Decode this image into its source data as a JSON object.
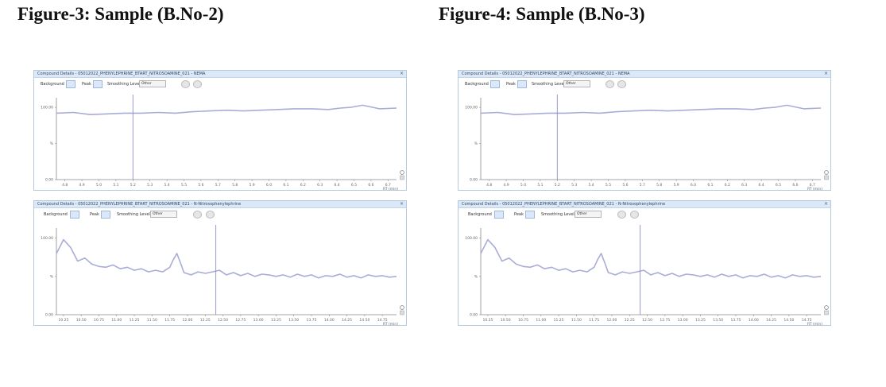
{
  "figures": [
    {
      "title": "Figure-3: Sample (B.No-2)",
      "top_panel": {
        "window_title": "Compound Details - 05012022_PHENYLEPHRINE_BTART_NITROSOAMINE_021 - NEMA",
        "close": "×",
        "toolbar": {
          "background": "Background",
          "peak": "Peak",
          "smoothing": "Smoothing Level",
          "smoothing_value": "Other"
        }
      },
      "bottom_panel": {
        "window_title": "Compound Details - 05012022_PHENYLEPHRINE_BTART_NITROSOAMINE_021 - N-Nitrosophenylephrine",
        "close": "×",
        "toolbar": {
          "background": "Background",
          "peak": "Peak",
          "smoothing": "Smoothing Level",
          "smoothing_value": "Other"
        }
      }
    },
    {
      "title": "Figure-4: Sample (B.No-3)",
      "top_panel": {
        "window_title": "Compound Details - 05012022_PHENYLEPHRINE_BTART_NITROSOAMINE_021 - NEMA",
        "close": "×",
        "toolbar": {
          "background": "Background",
          "peak": "Peak",
          "smoothing": "Smoothing Level",
          "smoothing_value": "Other"
        }
      },
      "bottom_panel": {
        "window_title": "Compound Details - 05012022_PHENYLEPHRINE_BTART_NITROSOAMINE_021 - N-Nitrosophenylephrine",
        "close": "×",
        "toolbar": {
          "background": "Background",
          "peak": "Peak",
          "smoothing": "Smoothing Level",
          "smoothing_value": "Other"
        }
      }
    }
  ],
  "colors": {
    "trace": "#a9acd8",
    "marker": "#8a90c8",
    "axis": "#888888"
  },
  "chart_data": [
    {
      "type": "line",
      "panel": "top",
      "xlabel": "RT (min)",
      "ylabel": "",
      "ylim": [
        0,
        100
      ],
      "yticks": [
        "100.00",
        "%",
        "0.00"
      ],
      "xticks": [
        "4.8",
        "4.9",
        "5.0",
        "5.1",
        "5.2",
        "5.3",
        "5.4",
        "5.5",
        "5.6",
        "5.7",
        "5.8",
        "5.9",
        "6.0",
        "6.1",
        "6.2",
        "6.3",
        "6.4",
        "6.5",
        "6.6",
        "6.7"
      ],
      "xlim": [
        4.75,
        6.75
      ],
      "marker_x": 5.2,
      "x": [
        4.75,
        4.85,
        4.95,
        5.05,
        5.15,
        5.25,
        5.35,
        5.45,
        5.55,
        5.65,
        5.75,
        5.85,
        5.95,
        6.05,
        6.15,
        6.25,
        6.35,
        6.42,
        6.48,
        6.55,
        6.65,
        6.75
      ],
      "y": [
        92,
        93,
        90,
        91,
        92,
        92,
        93,
        92,
        94,
        95,
        96,
        95,
        96,
        97,
        98,
        98,
        97,
        99,
        100,
        103,
        98,
        99
      ]
    },
    {
      "type": "line",
      "panel": "bottom",
      "xlabel": "RT (min)",
      "ylabel": "",
      "ylim": [
        0,
        100
      ],
      "yticks": [
        "100.00",
        "%",
        "0.00"
      ],
      "xticks": [
        "10.25",
        "10.50",
        "10.75",
        "11.00",
        "11.25",
        "11.50",
        "11.75",
        "12.00",
        "12.25",
        "12.50",
        "12.75",
        "13.00",
        "13.25",
        "13.50",
        "13.75",
        "14.00",
        "14.25",
        "14.50",
        "14.75"
      ],
      "xlim": [
        10.15,
        14.95
      ],
      "marker_x": 12.4,
      "x": [
        10.15,
        10.25,
        10.35,
        10.45,
        10.55,
        10.65,
        10.75,
        10.85,
        10.95,
        11.05,
        11.15,
        11.25,
        11.35,
        11.45,
        11.55,
        11.65,
        11.75,
        11.8,
        11.85,
        11.9,
        11.95,
        12.05,
        12.15,
        12.25,
        12.35,
        12.45,
        12.55,
        12.65,
        12.75,
        12.85,
        12.95,
        13.05,
        13.15,
        13.25,
        13.35,
        13.45,
        13.55,
        13.65,
        13.75,
        13.85,
        13.95,
        14.05,
        14.15,
        14.25,
        14.35,
        14.45,
        14.55,
        14.65,
        14.75,
        14.85,
        14.95
      ],
      "y": [
        80,
        98,
        88,
        70,
        74,
        66,
        63,
        62,
        65,
        60,
        62,
        58,
        60,
        56,
        58,
        56,
        62,
        72,
        80,
        68,
        55,
        52,
        56,
        54,
        56,
        58,
        52,
        55,
        51,
        54,
        50,
        53,
        52,
        50,
        52,
        49,
        53,
        50,
        52,
        48,
        51,
        50,
        53,
        49,
        51,
        48,
        52,
        50,
        51,
        49,
        50
      ]
    }
  ]
}
